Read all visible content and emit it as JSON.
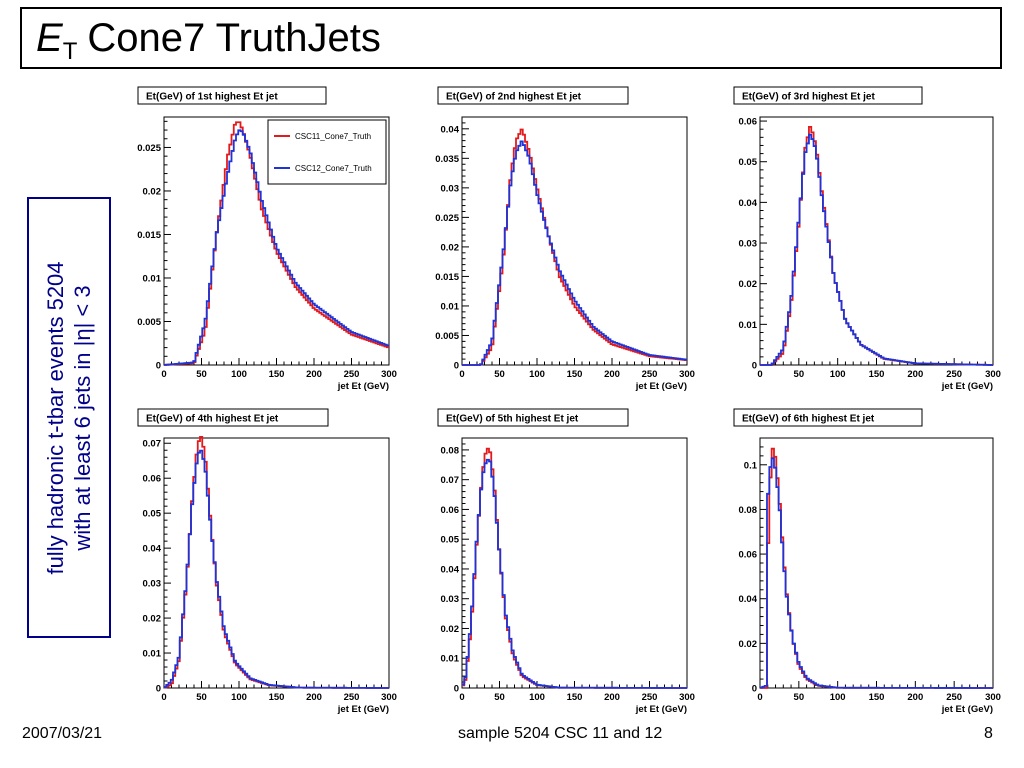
{
  "slide": {
    "title_prefix": "E",
    "title_subscript": "T",
    "title_main": "Cone7 TruthJets",
    "side_line1": "fully hadronic t-tbar events 5204",
    "side_line2": "with at least 6 jets in |η| < 3",
    "footer_date": "2007/03/21",
    "footer_center": "sample 5204 CSC 11 and 12",
    "footer_page": "8"
  },
  "colors": {
    "csc11": "#e31a1c",
    "csc12": "#1f33d6",
    "frame": "#000000"
  },
  "chart_data": [
    {
      "type": "line",
      "title": "Et(GeV) of 1st highest Et jet",
      "xlabel": "jet Et (GeV)",
      "xlim": [
        0,
        300
      ],
      "ylim": [
        0,
        0.0285
      ],
      "xticks": [
        0,
        50,
        100,
        150,
        200,
        250,
        300
      ],
      "xtick_labels": [
        "0",
        "50",
        "100",
        "150",
        "200",
        "250",
        "300"
      ],
      "yticks": [
        0,
        0.005,
        0.01,
        0.015,
        0.02,
        0.025
      ],
      "ytick_labels": [
        "0",
        "0.005",
        "0.01",
        "0.015",
        "0.02",
        "0.025"
      ],
      "legend": [
        "CSC11_Cone7_Truth",
        "CSC12_Cone7_Truth"
      ],
      "legend_position": "top-right",
      "x": [
        0,
        40,
        55,
        70,
        85,
        95,
        100,
        105,
        115,
        130,
        150,
        175,
        200,
        250,
        300
      ],
      "series": [
        {
          "name": "CSC11_Cone7_Truth",
          "values": [
            0,
            0.0002,
            0.004,
            0.015,
            0.024,
            0.0278,
            0.028,
            0.027,
            0.024,
            0.018,
            0.013,
            0.009,
            0.0065,
            0.0035,
            0.002
          ]
        },
        {
          "name": "CSC12_Cone7_Truth",
          "values": [
            0,
            0.0003,
            0.005,
            0.015,
            0.022,
            0.026,
            0.027,
            0.0268,
            0.0245,
            0.019,
            0.0135,
            0.0095,
            0.007,
            0.0038,
            0.0022
          ]
        }
      ]
    },
    {
      "type": "line",
      "title": "Et(GeV) of 2nd highest Et jet",
      "xlabel": "jet Et (GeV)",
      "xlim": [
        0,
        300
      ],
      "ylim": [
        0,
        0.042
      ],
      "xticks": [
        0,
        50,
        100,
        150,
        200,
        250,
        300
      ],
      "xtick_labels": [
        "0",
        "50",
        "100",
        "150",
        "200",
        "250",
        "300"
      ],
      "yticks": [
        0,
        0.005,
        0.01,
        0.015,
        0.02,
        0.025,
        0.03,
        0.035,
        0.04
      ],
      "ytick_labels": [
        "0",
        "0.005",
        "0.01",
        "0.015",
        "0.02",
        "0.025",
        "0.03",
        "0.035",
        "0.04"
      ],
      "x": [
        0,
        25,
        40,
        55,
        65,
        72,
        80,
        90,
        100,
        115,
        130,
        150,
        175,
        200,
        250,
        300
      ],
      "series": [
        {
          "values": [
            0,
            0,
            0.003,
            0.018,
            0.032,
            0.038,
            0.04,
            0.036,
            0.03,
            0.022,
            0.015,
            0.01,
            0.006,
            0.0035,
            0.0015,
            0.0008
          ]
        },
        {
          "values": [
            0,
            0,
            0.004,
            0.019,
            0.031,
            0.036,
            0.038,
            0.035,
            0.029,
            0.022,
            0.016,
            0.011,
            0.0065,
            0.004,
            0.0017,
            0.0009
          ]
        }
      ]
    },
    {
      "type": "line",
      "title": "Et(GeV) of 3rd highest Et jet",
      "xlabel": "jet Et (GeV)",
      "xlim": [
        0,
        300
      ],
      "ylim": [
        0,
        0.061
      ],
      "xticks": [
        0,
        50,
        100,
        150,
        200,
        250,
        300
      ],
      "xtick_labels": [
        "0",
        "50",
        "100",
        "150",
        "200",
        "250",
        "300"
      ],
      "yticks": [
        0,
        0.01,
        0.02,
        0.03,
        0.04,
        0.05,
        0.06
      ],
      "ytick_labels": [
        "0",
        "0.01",
        "0.02",
        "0.03",
        "0.04",
        "0.05",
        "0.06"
      ],
      "x": [
        0,
        15,
        30,
        40,
        50,
        58,
        65,
        72,
        80,
        95,
        110,
        130,
        160,
        200,
        300
      ],
      "series": [
        {
          "values": [
            0,
            0,
            0.003,
            0.015,
            0.035,
            0.053,
            0.059,
            0.054,
            0.042,
            0.022,
            0.011,
            0.005,
            0.0015,
            0.0004,
            0
          ]
        },
        {
          "values": [
            0,
            0,
            0.004,
            0.016,
            0.036,
            0.052,
            0.057,
            0.053,
            0.041,
            0.022,
            0.011,
            0.005,
            0.0016,
            0.0004,
            0
          ]
        }
      ]
    },
    {
      "type": "line",
      "title": "Et(GeV) of 4th highest Et jet",
      "xlabel": "jet Et (GeV)",
      "xlim": [
        0,
        300
      ],
      "ylim": [
        0,
        0.0715
      ],
      "xticks": [
        0,
        50,
        100,
        150,
        200,
        250,
        300
      ],
      "xtick_labels": [
        "0",
        "50",
        "100",
        "150",
        "200",
        "250",
        "300"
      ],
      "yticks": [
        0,
        0.01,
        0.02,
        0.03,
        0.04,
        0.05,
        0.06,
        0.07
      ],
      "ytick_labels": [
        "0",
        "0.01",
        "0.02",
        "0.03",
        "0.04",
        "0.05",
        "0.06",
        "0.07"
      ],
      "x": [
        0,
        10,
        20,
        30,
        38,
        45,
        50,
        55,
        62,
        70,
        80,
        95,
        115,
        140,
        180,
        300
      ],
      "series": [
        {
          "values": [
            0,
            0.001,
            0.008,
            0.03,
            0.055,
            0.07,
            0.072,
            0.066,
            0.048,
            0.03,
            0.016,
            0.007,
            0.0025,
            0.0008,
            0.0001,
            0
          ]
        },
        {
          "values": [
            0,
            0.002,
            0.009,
            0.031,
            0.054,
            0.067,
            0.068,
            0.063,
            0.047,
            0.031,
            0.017,
            0.0075,
            0.0028,
            0.0009,
            0.0001,
            0
          ]
        }
      ]
    },
    {
      "type": "line",
      "title": "Et(GeV) of 5th highest Et jet",
      "xlabel": "jet Et (GeV)",
      "xlim": [
        0,
        300
      ],
      "ylim": [
        0,
        0.084
      ],
      "xticks": [
        0,
        50,
        100,
        150,
        200,
        250,
        300
      ],
      "xtick_labels": [
        "0",
        "50",
        "100",
        "150",
        "200",
        "250",
        "300"
      ],
      "yticks": [
        0,
        0.01,
        0.02,
        0.03,
        0.04,
        0.05,
        0.06,
        0.07,
        0.08
      ],
      "ytick_labels": [
        "0",
        "0.01",
        "0.02",
        "0.03",
        "0.04",
        "0.05",
        "0.06",
        "0.07",
        "0.08"
      ],
      "x": [
        0,
        5,
        12,
        20,
        27,
        33,
        38,
        43,
        50,
        58,
        68,
        80,
        100,
        130,
        300
      ],
      "series": [
        {
          "values": [
            0,
            0.003,
            0.02,
            0.05,
            0.072,
            0.081,
            0.079,
            0.068,
            0.045,
            0.024,
            0.011,
            0.004,
            0.001,
            0.0001,
            0
          ]
        },
        {
          "values": [
            0,
            0.004,
            0.022,
            0.051,
            0.071,
            0.077,
            0.076,
            0.066,
            0.045,
            0.025,
            0.012,
            0.0045,
            0.0011,
            0.0001,
            0
          ]
        }
      ]
    },
    {
      "type": "line",
      "title": "Et(GeV) of 6th highest Et jet",
      "xlabel": "jet Et (GeV)",
      "xlim": [
        0,
        300
      ],
      "ylim": [
        0,
        0.112
      ],
      "xticks": [
        0,
        50,
        100,
        150,
        200,
        250,
        300
      ],
      "xtick_labels": [
        "0",
        "50",
        "100",
        "150",
        "200",
        "250",
        "300"
      ],
      "yticks": [
        0,
        0.02,
        0.04,
        0.06,
        0.08,
        0.1
      ],
      "ytick_labels": [
        "0",
        "0.02",
        "0.04",
        "0.06",
        "0.08",
        "0.1"
      ],
      "x": [
        0,
        8,
        10,
        15,
        20,
        25,
        30,
        35,
        42,
        50,
        60,
        75,
        100,
        300
      ],
      "series": [
        {
          "values": [
            0,
            0,
            0.06,
            0.109,
            0.103,
            0.085,
            0.06,
            0.04,
            0.022,
            0.01,
            0.004,
            0.001,
            0.0001,
            0
          ]
        },
        {
          "values": [
            0,
            0.001,
            0.085,
            0.105,
            0.098,
            0.082,
            0.058,
            0.039,
            0.022,
            0.011,
            0.0045,
            0.0012,
            0.0001,
            0
          ]
        }
      ]
    }
  ]
}
